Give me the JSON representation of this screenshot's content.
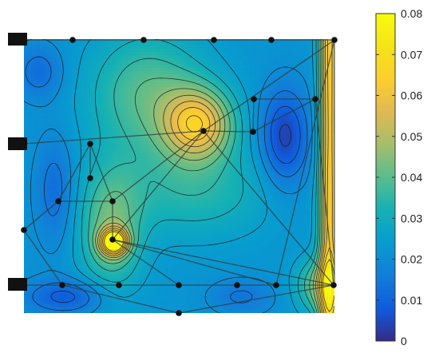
{
  "chart_data": {
    "type": "heatmap",
    "subtype": "filled contour with node and link overlay",
    "colormap": "parula",
    "color_range": [
      0,
      0.08
    ],
    "colorbar": {
      "placement": "right",
      "ticks": [
        0,
        0.01,
        0.02,
        0.03,
        0.04,
        0.05,
        0.06,
        0.07,
        0.08
      ],
      "tick_labels": [
        "0",
        "0.01",
        "0.02",
        "0.03",
        "0.04",
        "0.05",
        "0.06",
        "0.07",
        "0.08"
      ]
    },
    "field_features": [
      {
        "kind": "peak",
        "value": 0.075,
        "location": "lower-left interior"
      },
      {
        "kind": "peak",
        "value": 0.06,
        "location": "upper-center"
      },
      {
        "kind": "ridge",
        "value": 0.06,
        "location": "right edge"
      },
      {
        "kind": "trough",
        "value": 0.005,
        "location": "upper-right interior"
      },
      {
        "kind": "trough",
        "value": 0.008,
        "location": "bottom-left edge"
      }
    ],
    "nodes": 28,
    "supports": 3,
    "axes_visible": false,
    "grid": false
  },
  "colors": {
    "contour_line": "#1a1a1a",
    "link_line": "#2f3f3f",
    "node": "#111111",
    "support": "#111111"
  }
}
